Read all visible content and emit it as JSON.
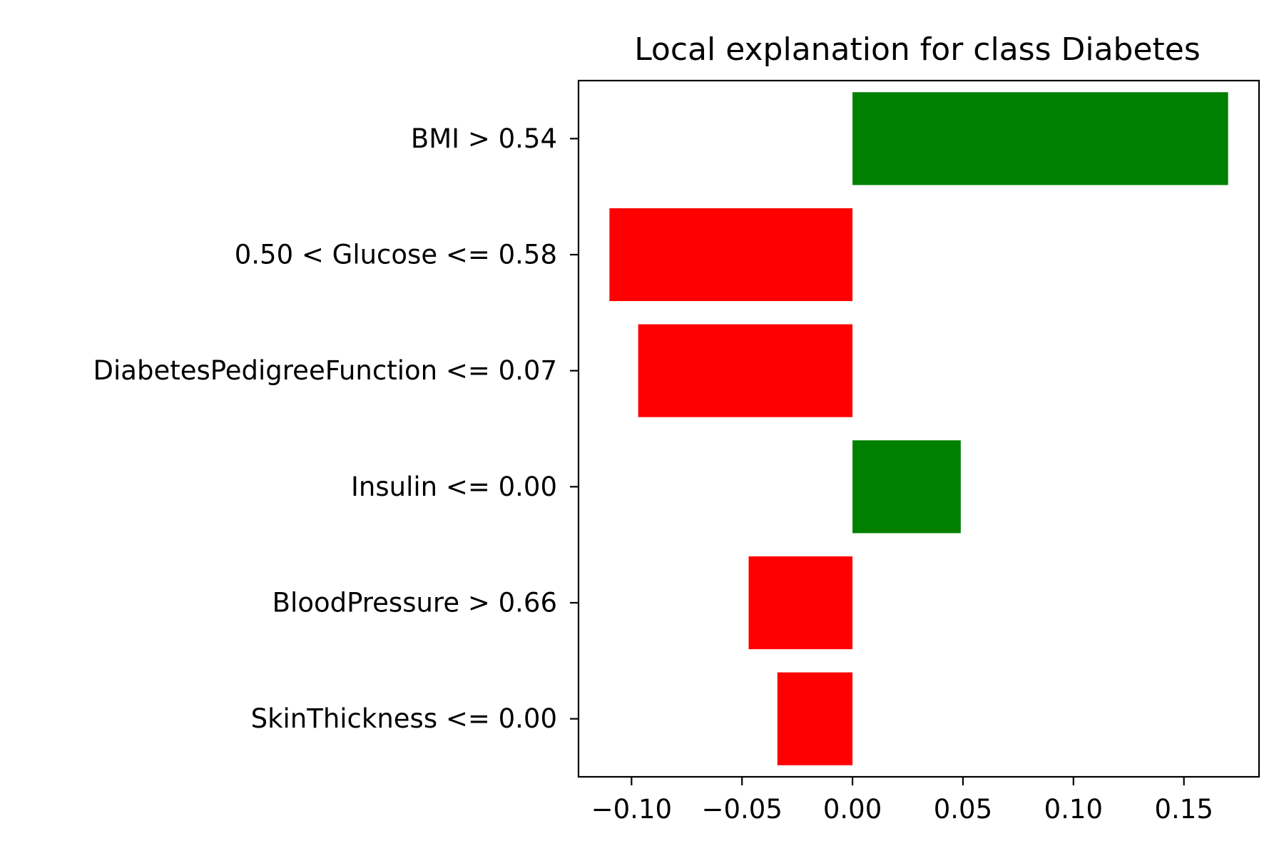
{
  "chart_data": {
    "type": "bar",
    "orientation": "horizontal",
    "title": "Local explanation for class Diabetes",
    "xlabel": "",
    "ylabel": "",
    "categories": [
      "BMI > 0.54",
      "0.50 < Glucose <= 0.58",
      "DiabetesPedigreeFunction <= 0.07",
      "Insulin <= 0.00",
      "BloodPressure > 0.66",
      "SkinThickness <= 0.00"
    ],
    "values": [
      0.17,
      -0.11,
      -0.097,
      0.049,
      -0.047,
      -0.034
    ],
    "xlim": [
      -0.124,
      0.184
    ],
    "xticks": [
      -0.1,
      -0.05,
      0.0,
      0.05,
      0.1,
      0.15
    ],
    "xtick_labels": [
      "−0.10",
      "−0.05",
      "0.00",
      "0.05",
      "0.10",
      "0.15"
    ],
    "grid": false,
    "legend": "none",
    "colors": {
      "positive": "#008000",
      "negative": "#ff0000"
    }
  }
}
